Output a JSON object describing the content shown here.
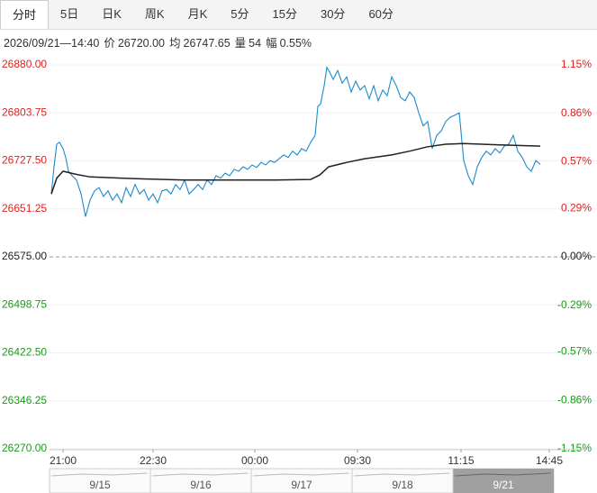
{
  "tabs": [
    "分时",
    "5日",
    "日K",
    "周K",
    "月K",
    "5分",
    "15分",
    "30分",
    "60分"
  ],
  "active_tab": 0,
  "info": {
    "datetime": "2026/09/21—14:40",
    "items": [
      {
        "label": "价",
        "value": "26720.00"
      },
      {
        "label": "均",
        "value": "26747.65"
      },
      {
        "label": "量",
        "value": "54"
      },
      {
        "label": "幅",
        "value": "0.55%"
      }
    ]
  },
  "chart_data": {
    "type": "line",
    "xlim": [
      0,
      600
    ],
    "xticks": [
      {
        "value": 15,
        "label": "21:00"
      },
      {
        "value": 115,
        "label": "22:30"
      },
      {
        "value": 228,
        "label": "00:00"
      },
      {
        "value": 342,
        "label": "09:30"
      },
      {
        "value": 457,
        "label": "11:15"
      },
      {
        "value": 555,
        "label": "14:45"
      }
    ],
    "ylim": [
      26270,
      26880
    ],
    "yticks": [
      {
        "value": 26880,
        "label": "26880.00"
      },
      {
        "value": 26803.75,
        "label": "26803.75"
      },
      {
        "value": 26727.5,
        "label": "26727.50"
      },
      {
        "value": 26651.25,
        "label": "26651.25"
      },
      {
        "value": 26575,
        "label": "26575.00"
      },
      {
        "value": 26498.75,
        "label": "26498.75"
      },
      {
        "value": 26422.5,
        "label": "26422.50"
      },
      {
        "value": 26346.25,
        "label": "26346.25"
      },
      {
        "value": 26270,
        "label": "26270.00"
      }
    ],
    "y2lim": [
      -1.15,
      1.15
    ],
    "y2ticks": [
      {
        "value": 1.15,
        "label": "1.15%"
      },
      {
        "value": 0.86,
        "label": "0.86%"
      },
      {
        "value": 0.57,
        "label": "0.57%"
      },
      {
        "value": 0.29,
        "label": "0.29%"
      },
      {
        "value": 0,
        "label": "0.00%"
      },
      {
        "value": -0.29,
        "label": "-0.29%"
      },
      {
        "value": -0.57,
        "label": "-0.57%"
      },
      {
        "value": -0.86,
        "label": "-0.86%"
      },
      {
        "value": -1.15,
        "label": "-1.15%"
      }
    ],
    "reference_line": 26575,
    "up_color": "#e02020",
    "down_color": "#1a9a1a",
    "flat_color": "#222222",
    "series": [
      {
        "name": "价",
        "color": "#1d8acb",
        "x": [
          2,
          5,
          8,
          11,
          15,
          18,
          21,
          25,
          30,
          35,
          40,
          45,
          50,
          55,
          60,
          65,
          70,
          75,
          80,
          85,
          90,
          95,
          100,
          105,
          110,
          115,
          120,
          125,
          130,
          135,
          140,
          145,
          150,
          155,
          160,
          165,
          170,
          175,
          180,
          185,
          190,
          195,
          200,
          205,
          210,
          215,
          220,
          225,
          230,
          235,
          240,
          245,
          250,
          255,
          260,
          265,
          270,
          275,
          280,
          285,
          290,
          295,
          298,
          301,
          305,
          308,
          311,
          315,
          320,
          325,
          330,
          335,
          340,
          345,
          350,
          355,
          360,
          365,
          370,
          375,
          380,
          385,
          390,
          395,
          400,
          405,
          410,
          415,
          420,
          425,
          430,
          435,
          440,
          445,
          450,
          455,
          460,
          465,
          470,
          475,
          480,
          485,
          490,
          495,
          500,
          505,
          510,
          515,
          520,
          525,
          530,
          535,
          540,
          545
        ],
        "values": [
          26675,
          26718,
          26754,
          26757,
          26747,
          26733,
          26711,
          26704,
          26697,
          26675,
          26639,
          26665,
          26680,
          26685,
          26671,
          26680,
          26665,
          26675,
          26661,
          26685,
          26671,
          26690,
          26675,
          26682,
          26665,
          26675,
          26661,
          26680,
          26682,
          26675,
          26690,
          26682,
          26697,
          26675,
          26682,
          26690,
          26682,
          26697,
          26690,
          26704,
          26700,
          26708,
          26704,
          26714,
          26711,
          26718,
          26714,
          26721,
          26717,
          26725,
          26721,
          26728,
          26725,
          26731,
          26737,
          26733,
          26743,
          26737,
          26747,
          26743,
          26757,
          26768,
          26814,
          26818,
          26847,
          26876,
          26869,
          26857,
          26871,
          26851,
          26861,
          26837,
          26854,
          26840,
          26847,
          26826,
          26847,
          26823,
          26840,
          26831,
          26861,
          26847,
          26828,
          26823,
          26837,
          26828,
          26804,
          26783,
          26790,
          26747,
          26768,
          26775,
          26790,
          26797,
          26800,
          26804,
          26728,
          26704,
          26690,
          26718,
          26733,
          26743,
          26737,
          26747,
          26740,
          26751,
          26754,
          26768,
          26743,
          26733,
          26718,
          26711,
          26728,
          26722
        ]
      },
      {
        "name": "均",
        "color": "#222222",
        "x": [
          2,
          8,
          15,
          30,
          45,
          100,
          150,
          200,
          250,
          290,
          300,
          310,
          330,
          350,
          380,
          400,
          420,
          440,
          460,
          480,
          500,
          520,
          545
        ],
        "values": [
          26675,
          26700,
          26711,
          26706,
          26702,
          26699,
          26697,
          26697,
          26697,
          26698,
          26705,
          26718,
          26725,
          26731,
          26737,
          26743,
          26750,
          26754,
          26755,
          26754,
          26753,
          26752,
          26751
        ]
      }
    ]
  },
  "navigator": {
    "dates": [
      "9/15",
      "9/16",
      "9/17",
      "9/18",
      "9/21"
    ],
    "selected": 4
  }
}
